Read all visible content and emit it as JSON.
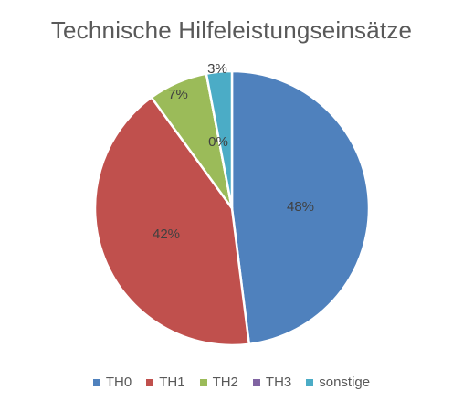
{
  "chart_data": {
    "type": "pie",
    "title": "Technische Hilfeleistungseinsätze",
    "categories": [
      "TH0",
      "TH1",
      "TH2",
      "TH3",
      "sonstige"
    ],
    "values": [
      48,
      42,
      7,
      0,
      3
    ],
    "labels": [
      "48%",
      "42%",
      "7%",
      "0%",
      "3%"
    ],
    "colors": [
      "#4F81BD",
      "#C0504D",
      "#9BBB59",
      "#8064A2",
      "#4BACC6"
    ],
    "legend": "bottom"
  }
}
